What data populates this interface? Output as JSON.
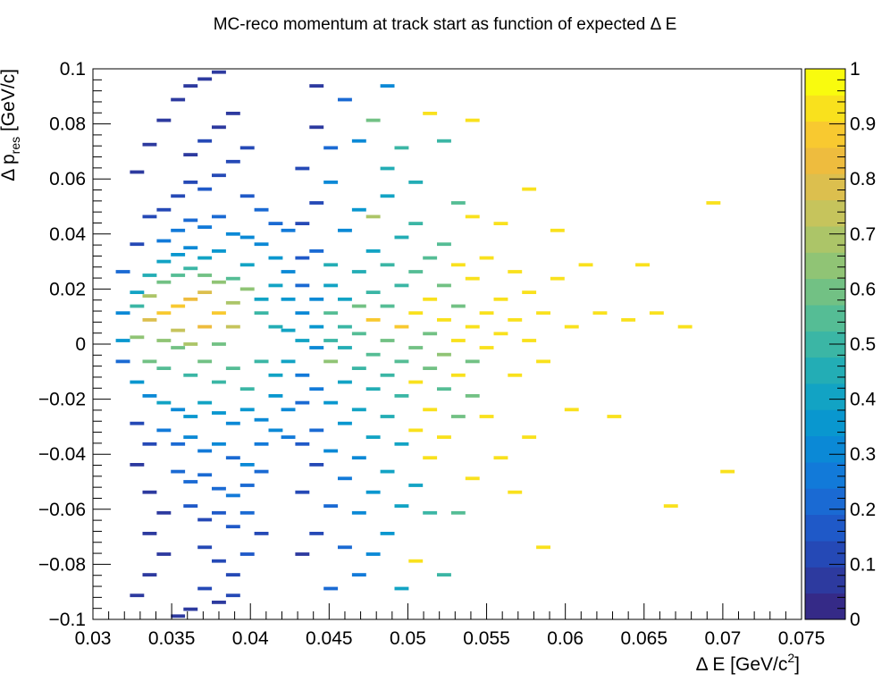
{
  "chart_data": {
    "type": "heatmap",
    "title": "MC-reco momentum at track start as function of expected     Δ E",
    "xlabel": "Δ E [GeV/c",
    "xlabel_sup": "2",
    "xlabel_tail": "]",
    "ylabel": "Δ p",
    "ylabel_sub": "res",
    "ylabel_tail": " [GeV/c]",
    "xlim": [
      0.03,
      0.075
    ],
    "ylim": [
      -0.1,
      0.1
    ],
    "zlim": [
      0,
      1
    ],
    "x_tick_labels": [
      "0.03",
      "0.035",
      "0.04",
      "0.045",
      "0.05",
      "0.055",
      "0.06",
      "0.065",
      "0.07",
      "0.075"
    ],
    "y_tick_labels": [
      "−0.1",
      "−0.08",
      "−0.06",
      "−0.04",
      "−0.02",
      "0",
      "0.02",
      "0.04",
      "0.06",
      "0.08",
      "0.1"
    ],
    "z_tick_labels": [
      "0",
      "0.1",
      "0.2",
      "0.3",
      "0.4",
      "0.5",
      "0.6",
      "0.7",
      "0.8",
      "0.9",
      "1"
    ],
    "bin_width_x": 0.0009,
    "bin_width_y": 0.00125,
    "palette": [
      "#352a87",
      "#2d3a9f",
      "#2549b6",
      "#1f59c8",
      "#1a6ad3",
      "#127ad9",
      "#0b89d6",
      "#0997cf",
      "#12a3c4",
      "#23adb5",
      "#3bb6a5",
      "#55bd95",
      "#72c184",
      "#90c475",
      "#acc568",
      "#c6c45c",
      "#dcbf4e",
      "#eebc3e",
      "#f8c930",
      "#f9e11d",
      "#f9fb0e"
    ],
    "bins": [
      [
        0.0328,
        0.0025,
        0.66
      ],
      [
        0.0336,
        0.0088,
        0.78
      ],
      [
        0.0345,
        0.0113,
        0.88
      ],
      [
        0.0354,
        0.0138,
        0.9
      ],
      [
        0.0362,
        0.0163,
        0.85
      ],
      [
        0.0371,
        0.0188,
        0.8
      ],
      [
        0.038,
        0.0113,
        0.92
      ],
      [
        0.0389,
        0.0063,
        0.76
      ],
      [
        0.0371,
        0.0063,
        0.86
      ],
      [
        0.0354,
        0.005,
        0.74
      ],
      [
        0.0345,
        0.0013,
        0.66
      ],
      [
        0.0362,
        0.0,
        0.7
      ],
      [
        0.038,
        0.0,
        0.6
      ],
      [
        0.0389,
        0.015,
        0.7
      ],
      [
        0.0398,
        0.02,
        0.64
      ],
      [
        0.0336,
        0.0175,
        0.7
      ],
      [
        0.0345,
        0.0225,
        0.62
      ],
      [
        0.0354,
        0.025,
        0.56
      ],
      [
        0.0362,
        0.0275,
        0.5
      ],
      [
        0.0371,
        0.025,
        0.6
      ],
      [
        0.038,
        0.0225,
        0.66
      ],
      [
        0.0389,
        0.0238,
        0.55
      ],
      [
        0.0407,
        0.0113,
        0.5
      ],
      [
        0.0416,
        0.0063,
        0.45
      ],
      [
        0.0407,
        0.0163,
        0.42
      ],
      [
        0.0416,
        0.0213,
        0.38
      ],
      [
        0.0398,
        0.0288,
        0.4
      ],
      [
        0.0328,
        0.0138,
        0.5
      ],
      [
        0.0328,
        0.0188,
        0.4
      ],
      [
        0.0336,
        0.025,
        0.45
      ],
      [
        0.0345,
        0.03,
        0.4
      ],
      [
        0.0354,
        0.0325,
        0.35
      ],
      [
        0.0362,
        0.035,
        0.3
      ],
      [
        0.0371,
        0.0313,
        0.38
      ],
      [
        0.038,
        0.0338,
        0.33
      ],
      [
        0.0345,
        0.0375,
        0.25
      ],
      [
        0.0354,
        0.0413,
        0.25
      ],
      [
        0.0362,
        0.045,
        0.22
      ],
      [
        0.0371,
        0.0425,
        0.27
      ],
      [
        0.038,
        0.0463,
        0.2
      ],
      [
        0.0389,
        0.04,
        0.3
      ],
      [
        0.0398,
        0.0388,
        0.32
      ],
      [
        0.0407,
        0.0363,
        0.28
      ],
      [
        0.0416,
        0.0313,
        0.33
      ],
      [
        0.0424,
        0.0263,
        0.3
      ],
      [
        0.0424,
        0.0163,
        0.35
      ],
      [
        0.0433,
        0.0113,
        0.3
      ],
      [
        0.0433,
        0.0013,
        0.42
      ],
      [
        0.0424,
        0.005,
        0.38
      ],
      [
        0.0336,
        -0.0063,
        0.62
      ],
      [
        0.0345,
        -0.0088,
        0.55
      ],
      [
        0.0354,
        -0.0013,
        0.62
      ],
      [
        0.0362,
        -0.0113,
        0.5
      ],
      [
        0.0371,
        -0.0063,
        0.58
      ],
      [
        0.038,
        -0.0138,
        0.52
      ],
      [
        0.0389,
        -0.0088,
        0.55
      ],
      [
        0.0398,
        -0.0163,
        0.48
      ],
      [
        0.0407,
        -0.0063,
        0.5
      ],
      [
        0.0416,
        -0.0113,
        0.42
      ],
      [
        0.0424,
        -0.0063,
        0.38
      ],
      [
        0.0328,
        -0.0138,
        0.35
      ],
      [
        0.0336,
        -0.0188,
        0.32
      ],
      [
        0.0345,
        -0.0213,
        0.38
      ],
      [
        0.0354,
        -0.0238,
        0.3
      ],
      [
        0.0362,
        -0.0263,
        0.33
      ],
      [
        0.0371,
        -0.0213,
        0.4
      ],
      [
        0.038,
        -0.025,
        0.36
      ],
      [
        0.0389,
        -0.0288,
        0.3
      ],
      [
        0.0398,
        -0.0238,
        0.35
      ],
      [
        0.0407,
        -0.0275,
        0.32
      ],
      [
        0.0416,
        -0.0188,
        0.36
      ],
      [
        0.0424,
        -0.0238,
        0.3
      ],
      [
        0.0345,
        -0.0313,
        0.25
      ],
      [
        0.0354,
        -0.0363,
        0.22
      ],
      [
        0.0362,
        -0.0338,
        0.3
      ],
      [
        0.0371,
        -0.0388,
        0.25
      ],
      [
        0.038,
        -0.0363,
        0.28
      ],
      [
        0.0389,
        -0.0413,
        0.22
      ],
      [
        0.0398,
        -0.0438,
        0.3
      ],
      [
        0.0407,
        -0.0363,
        0.26
      ],
      [
        0.0416,
        -0.0313,
        0.28
      ],
      [
        0.0424,
        -0.0338,
        0.24
      ],
      [
        0.0354,
        -0.0463,
        0.2
      ],
      [
        0.0362,
        -0.05,
        0.22
      ],
      [
        0.0371,
        -0.0475,
        0.18
      ],
      [
        0.038,
        -0.0525,
        0.2
      ],
      [
        0.0389,
        -0.055,
        0.25
      ],
      [
        0.0398,
        -0.0513,
        0.2
      ],
      [
        0.0407,
        -0.0463,
        0.18
      ],
      [
        0.0362,
        -0.0588,
        0.15
      ],
      [
        0.0371,
        -0.0638,
        0.12
      ],
      [
        0.038,
        -0.0613,
        0.17
      ],
      [
        0.0389,
        -0.0663,
        0.14
      ],
      [
        0.0398,
        -0.0613,
        0.2
      ],
      [
        0.0407,
        -0.0688,
        0.12
      ],
      [
        0.0371,
        -0.0738,
        0.1
      ],
      [
        0.038,
        -0.0788,
        0.12
      ],
      [
        0.0389,
        -0.0838,
        0.1
      ],
      [
        0.0398,
        -0.0763,
        0.15
      ],
      [
        0.0371,
        -0.0888,
        0.08
      ],
      [
        0.038,
        -0.0938,
        0.06
      ],
      [
        0.0389,
        -0.0913,
        0.1
      ],
      [
        0.0362,
        -0.0963,
        0.05
      ],
      [
        0.0354,
        -0.0988,
        0.04
      ],
      [
        0.0345,
        0.0488,
        0.12
      ],
      [
        0.0354,
        0.0538,
        0.1
      ],
      [
        0.0362,
        0.0588,
        0.12
      ],
      [
        0.0371,
        0.0563,
        0.15
      ],
      [
        0.038,
        0.0613,
        0.1
      ],
      [
        0.0389,
        0.0663,
        0.08
      ],
      [
        0.0398,
        0.0538,
        0.14
      ],
      [
        0.0407,
        0.0488,
        0.2
      ],
      [
        0.0416,
        0.0438,
        0.22
      ],
      [
        0.0424,
        0.0413,
        0.25
      ],
      [
        0.0362,
        0.0688,
        0.06
      ],
      [
        0.0371,
        0.0738,
        0.08
      ],
      [
        0.038,
        0.0788,
        0.06
      ],
      [
        0.0389,
        0.0838,
        0.05
      ],
      [
        0.0398,
        0.0713,
        0.1
      ],
      [
        0.0354,
        0.0888,
        0.04
      ],
      [
        0.0362,
        0.0938,
        0.06
      ],
      [
        0.0371,
        0.0963,
        0.04
      ],
      [
        0.038,
        0.0988,
        0.03
      ],
      [
        0.0336,
        0.0725,
        0.05
      ],
      [
        0.0345,
        0.0813,
        0.04
      ],
      [
        0.0328,
        0.0625,
        0.04
      ],
      [
        0.0336,
        0.0463,
        0.08
      ],
      [
        0.0328,
        0.0363,
        0.1
      ],
      [
        0.0319,
        0.0263,
        0.18
      ],
      [
        0.0319,
        0.0113,
        0.3
      ],
      [
        0.0319,
        0.0013,
        0.35
      ],
      [
        0.0319,
        -0.0063,
        0.22
      ],
      [
        0.0328,
        -0.0288,
        0.12
      ],
      [
        0.0336,
        -0.0363,
        0.1
      ],
      [
        0.0328,
        -0.0438,
        0.06
      ],
      [
        0.0336,
        -0.0538,
        0.05
      ],
      [
        0.0345,
        -0.0613,
        0.06
      ],
      [
        0.0336,
        -0.0688,
        0.04
      ],
      [
        0.0345,
        -0.0763,
        0.05
      ],
      [
        0.0336,
        -0.0838,
        0.04
      ],
      [
        0.0328,
        -0.0913,
        0.03
      ],
      [
        0.0433,
        0.0213,
        0.2
      ],
      [
        0.0433,
        0.0313,
        0.15
      ],
      [
        0.0433,
        -0.0113,
        0.25
      ],
      [
        0.0433,
        -0.0213,
        0.2
      ],
      [
        0.0433,
        -0.0363,
        0.15
      ],
      [
        0.0433,
        0.0438,
        0.1
      ],
      [
        0.0433,
        0.0638,
        0.08
      ],
      [
        0.0433,
        -0.0538,
        0.1
      ],
      [
        0.0433,
        -0.0763,
        0.06
      ],
      [
        0.0442,
        0.0063,
        0.33
      ],
      [
        0.0442,
        0.0163,
        0.28
      ],
      [
        0.0442,
        -0.0013,
        0.3
      ],
      [
        0.0442,
        -0.0163,
        0.25
      ],
      [
        0.0442,
        0.0338,
        0.2
      ],
      [
        0.0442,
        -0.0313,
        0.22
      ],
      [
        0.0442,
        0.0513,
        0.1
      ],
      [
        0.0442,
        -0.0438,
        0.12
      ],
      [
        0.0442,
        0.0788,
        0.06
      ],
      [
        0.0442,
        -0.0688,
        0.08
      ],
      [
        0.0442,
        0.0938,
        0.04
      ],
      [
        0.0451,
        0.0113,
        0.55
      ],
      [
        0.0451,
        0.0013,
        0.48
      ],
      [
        0.0451,
        -0.0063,
        0.65
      ],
      [
        0.0451,
        0.0213,
        0.4
      ],
      [
        0.0451,
        -0.0213,
        0.35
      ],
      [
        0.0451,
        0.0288,
        0.45
      ],
      [
        0.0451,
        0.0588,
        0.3
      ],
      [
        0.0451,
        -0.0388,
        0.28
      ],
      [
        0.0451,
        -0.0588,
        0.22
      ],
      [
        0.0451,
        0.0713,
        0.2
      ],
      [
        0.0451,
        -0.0888,
        0.18
      ],
      [
        0.046,
        0.0063,
        0.5
      ],
      [
        0.046,
        -0.0013,
        0.45
      ],
      [
        0.046,
        0.0163,
        0.4
      ],
      [
        0.046,
        -0.0138,
        0.42
      ],
      [
        0.046,
        0.0413,
        0.3
      ],
      [
        0.046,
        -0.0288,
        0.35
      ],
      [
        0.046,
        0.0888,
        0.22
      ],
      [
        0.046,
        -0.0488,
        0.25
      ],
      [
        0.046,
        -0.0738,
        0.2
      ],
      [
        0.0469,
        0.0138,
        0.6
      ],
      [
        0.0469,
        0.0038,
        0.55
      ],
      [
        0.0469,
        -0.0088,
        0.5
      ],
      [
        0.0469,
        0.0263,
        0.45
      ],
      [
        0.0469,
        -0.0238,
        0.4
      ],
      [
        0.0469,
        0.0488,
        0.35
      ],
      [
        0.0469,
        -0.0413,
        0.3
      ],
      [
        0.0469,
        0.0738,
        0.3
      ],
      [
        0.0469,
        -0.0613,
        0.28
      ],
      [
        0.0469,
        -0.0838,
        0.25
      ],
      [
        0.0478,
        0.0088,
        0.9
      ],
      [
        0.0478,
        -0.0038,
        0.55
      ],
      [
        0.0478,
        0.0188,
        0.5
      ],
      [
        0.0478,
        -0.0163,
        0.45
      ],
      [
        0.0478,
        0.0338,
        0.42
      ],
      [
        0.0478,
        -0.0338,
        0.4
      ],
      [
        0.0478,
        0.0813,
        0.62
      ],
      [
        0.0478,
        -0.0538,
        0.35
      ],
      [
        0.0478,
        0.0463,
        0.7
      ],
      [
        0.0478,
        -0.0763,
        0.3
      ],
      [
        0.0487,
        0.0013,
        0.6
      ],
      [
        0.0487,
        0.0138,
        0.55
      ],
      [
        0.0487,
        -0.0113,
        0.5
      ],
      [
        0.0487,
        0.0288,
        0.48
      ],
      [
        0.0487,
        -0.0263,
        0.45
      ],
      [
        0.0487,
        0.0538,
        0.4
      ],
      [
        0.0487,
        -0.0463,
        0.38
      ],
      [
        0.0487,
        0.0638,
        0.45
      ],
      [
        0.0487,
        -0.0688,
        0.35
      ],
      [
        0.0487,
        0.0938,
        0.3
      ],
      [
        0.0496,
        0.0063,
        0.92
      ],
      [
        0.0496,
        -0.0063,
        0.55
      ],
      [
        0.0496,
        0.0213,
        0.5
      ],
      [
        0.0496,
        -0.0188,
        0.48
      ],
      [
        0.0496,
        0.0388,
        0.45
      ],
      [
        0.0496,
        -0.0363,
        0.42
      ],
      [
        0.0496,
        0.0713,
        0.5
      ],
      [
        0.0496,
        -0.0588,
        0.4
      ],
      [
        0.0496,
        -0.0888,
        0.38
      ],
      [
        0.0505,
        0.0113,
        0.95
      ],
      [
        0.0505,
        -0.0013,
        0.6
      ],
      [
        0.0505,
        0.0263,
        0.55
      ],
      [
        0.0505,
        -0.0138,
        0.95
      ],
      [
        0.0505,
        0.0438,
        0.5
      ],
      [
        0.0505,
        -0.0313,
        0.95
      ],
      [
        0.0505,
        0.0588,
        0.45
      ],
      [
        0.0505,
        -0.0513,
        0.4
      ],
      [
        0.0505,
        -0.0788,
        0.95
      ],
      [
        0.0514,
        0.0038,
        0.62
      ],
      [
        0.0514,
        0.0163,
        0.95
      ],
      [
        0.0514,
        -0.0088,
        0.58
      ],
      [
        0.0514,
        0.0313,
        0.55
      ],
      [
        0.0514,
        -0.0238,
        0.95
      ],
      [
        0.0514,
        0.0838,
        0.95
      ],
      [
        0.0514,
        -0.0413,
        0.95
      ],
      [
        0.0514,
        -0.0613,
        0.5
      ],
      [
        0.0523,
        0.0088,
        0.95
      ],
      [
        0.0523,
        -0.0038,
        0.65
      ],
      [
        0.0523,
        0.0213,
        0.6
      ],
      [
        0.0523,
        -0.0163,
        0.55
      ],
      [
        0.0523,
        0.0363,
        0.55
      ],
      [
        0.0523,
        -0.0338,
        0.95
      ],
      [
        0.0523,
        0.0738,
        0.5
      ],
      [
        0.0523,
        -0.0838,
        0.5
      ],
      [
        0.0532,
        0.0013,
        0.95
      ],
      [
        0.0532,
        0.0138,
        0.6
      ],
      [
        0.0532,
        -0.0113,
        0.95
      ],
      [
        0.0532,
        0.0288,
        0.95
      ],
      [
        0.0532,
        -0.0263,
        0.6
      ],
      [
        0.0532,
        0.0513,
        0.55
      ],
      [
        0.0532,
        -0.0613,
        0.55
      ],
      [
        0.0541,
        0.0063,
        0.95
      ],
      [
        0.0541,
        -0.0063,
        0.6
      ],
      [
        0.0541,
        0.0238,
        0.95
      ],
      [
        0.0541,
        -0.0188,
        0.6
      ],
      [
        0.0541,
        0.0463,
        0.95
      ],
      [
        0.0541,
        0.0813,
        0.95
      ],
      [
        0.0541,
        -0.0488,
        0.95
      ],
      [
        0.055,
        0.0113,
        0.95
      ],
      [
        0.055,
        -0.0013,
        0.95
      ],
      [
        0.055,
        0.0313,
        0.95
      ],
      [
        0.055,
        -0.0263,
        0.95
      ],
      [
        0.0559,
        0.0038,
        0.95
      ],
      [
        0.0559,
        0.0163,
        0.95
      ],
      [
        0.0559,
        0.0438,
        0.95
      ],
      [
        0.0559,
        -0.0413,
        0.95
      ],
      [
        0.0568,
        0.0088,
        0.95
      ],
      [
        0.0568,
        -0.0113,
        0.95
      ],
      [
        0.0568,
        0.0263,
        0.95
      ],
      [
        0.0568,
        -0.0538,
        0.95
      ],
      [
        0.0577,
        0.0013,
        0.95
      ],
      [
        0.0577,
        0.0188,
        0.95
      ],
      [
        0.0577,
        -0.0338,
        0.95
      ],
      [
        0.0577,
        0.0563,
        0.95
      ],
      [
        0.0586,
        -0.0063,
        0.95
      ],
      [
        0.0586,
        0.0113,
        0.95
      ],
      [
        0.0586,
        -0.0738,
        0.95
      ],
      [
        0.0595,
        0.0238,
        0.95
      ],
      [
        0.0595,
        0.0413,
        0.95
      ],
      [
        0.0604,
        0.0063,
        0.95
      ],
      [
        0.0604,
        -0.0238,
        0.95
      ],
      [
        0.0613,
        0.0288,
        0.95
      ],
      [
        0.0622,
        0.0113,
        0.95
      ],
      [
        0.0631,
        -0.0263,
        0.95
      ],
      [
        0.064,
        0.0088,
        0.95
      ],
      [
        0.0649,
        0.0288,
        0.95
      ],
      [
        0.0658,
        0.0113,
        0.95
      ],
      [
        0.0667,
        -0.0588,
        0.95
      ],
      [
        0.0676,
        0.0063,
        0.95
      ],
      [
        0.0694,
        0.0513,
        0.95
      ],
      [
        0.0703,
        -0.0463,
        0.95
      ]
    ]
  }
}
